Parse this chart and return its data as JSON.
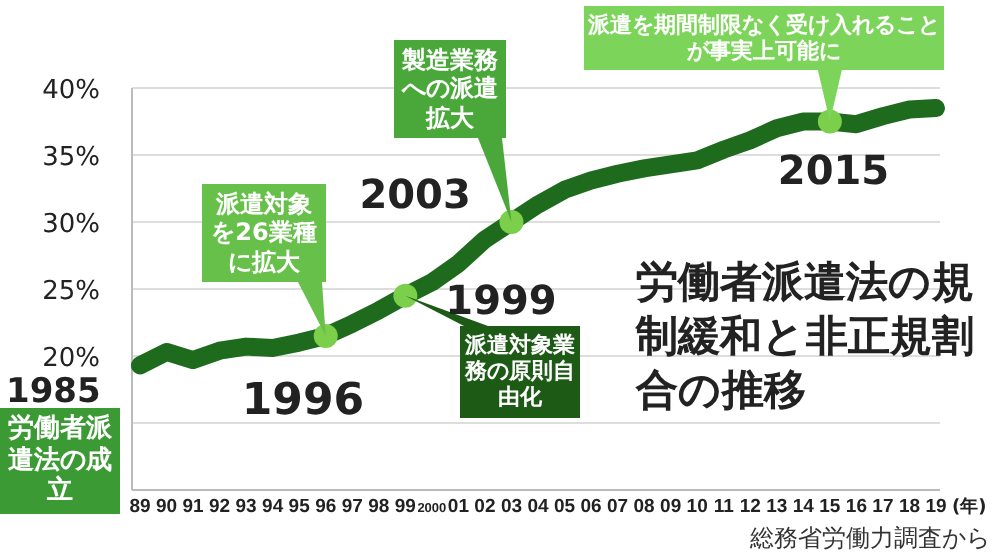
{
  "chart_data": {
    "type": "line",
    "title": "労働者派遣法の規制緩和と非正規割合の推移",
    "xlabel": "(年)",
    "categories": [
      "89",
      "90",
      "91",
      "92",
      "93",
      "94",
      "95",
      "96",
      "97",
      "98",
      "99",
      "2000",
      "01",
      "02",
      "03",
      "04",
      "05",
      "06",
      "07",
      "08",
      "09",
      "10",
      "11",
      "12",
      "13",
      "14",
      "15",
      "16",
      "17",
      "18",
      "19"
    ],
    "values": [
      19.3,
      20.3,
      19.7,
      20.4,
      20.7,
      20.6,
      21.0,
      21.5,
      22.4,
      23.4,
      24.5,
      25.5,
      26.9,
      28.7,
      30.0,
      31.3,
      32.4,
      33.1,
      33.6,
      34.0,
      34.3,
      34.6,
      35.4,
      36.1,
      37.0,
      37.5,
      37.5,
      37.3,
      37.9,
      38.4,
      38.5
    ],
    "color": "#1e6b1e",
    "ylim": [
      10,
      40
    ],
    "yticks": [
      {
        "value": 10,
        "label": null
      },
      {
        "value": 15,
        "label": null
      },
      {
        "value": 20,
        "label": "20%"
      },
      {
        "value": 25,
        "label": "25%"
      },
      {
        "value": 30,
        "label": "30%"
      },
      {
        "value": 35,
        "label": "35%"
      },
      {
        "value": 40,
        "label": "40%"
      }
    ],
    "grid": "y",
    "annotations": [
      "1985",
      "労働者派遣法の成立",
      {
        "text": "1996",
        "x": "96",
        "y": 21.5
      },
      {
        "text": "派遣対象を26業種に拡大",
        "x": "96",
        "y": 21.5
      },
      {
        "text": "1999",
        "x": "99",
        "y": 24.5
      },
      {
        "text": "派遣対象業務の原則自由化",
        "x": "99",
        "y": 24.5
      },
      {
        "text": "2003",
        "x": "03",
        "y": 30.0
      },
      {
        "text": "製造業務への派遣拡大",
        "x": "03",
        "y": 30.0
      },
      {
        "text": "2015",
        "x": "15",
        "y": 37.5
      },
      {
        "text": "派遣を期間制限なく受け入れることが事実上可能に",
        "x": "15",
        "y": 37.5
      },
      "総務省労働力調査から"
    ]
  }
}
